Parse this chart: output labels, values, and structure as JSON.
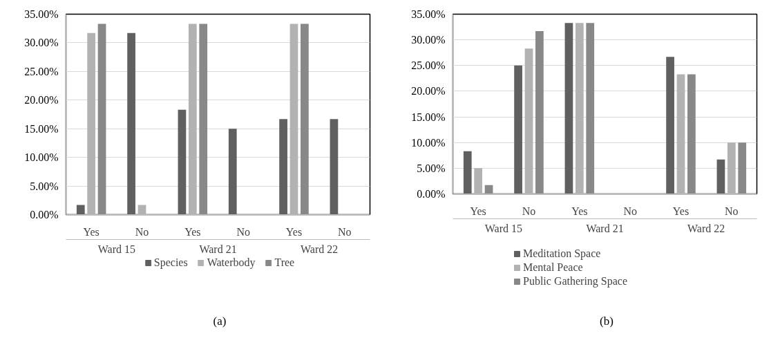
{
  "chart_data": [
    {
      "type": "bar",
      "categories": [
        "Yes",
        "No",
        "Yes",
        "No",
        "Yes",
        "No"
      ],
      "series": [
        {
          "name": "Species",
          "color": "#606060",
          "values": [
            1.7,
            31.7,
            18.3,
            15.0,
            16.7,
            16.7
          ]
        },
        {
          "name": "Waterbody",
          "color": "#b2b2b2",
          "values": [
            31.7,
            1.7,
            33.3,
            0,
            33.3,
            0
          ]
        },
        {
          "name": "Tree",
          "color": "#888888",
          "values": [
            33.3,
            0,
            33.3,
            0,
            33.3,
            0
          ]
        }
      ],
      "ylim": [
        0,
        35
      ],
      "yticks": [
        {
          "value": 0,
          "label": "0.00%"
        },
        {
          "value": 5,
          "label": "5.00%"
        },
        {
          "value": 10,
          "label": "10.00%"
        },
        {
          "value": 15,
          "label": "15.00%"
        },
        {
          "value": 20,
          "label": "20.00%"
        },
        {
          "value": 25,
          "label": "25.00%"
        },
        {
          "value": 30,
          "label": "30.00%"
        },
        {
          "value": 35,
          "label": "35.00%"
        }
      ],
      "grid": "y",
      "legend": "bottom",
      "annotations": [
        "Ward 15",
        "Ward 21",
        "Ward 22",
        "(a)"
      ]
    },
    {
      "type": "bar",
      "categories": [
        "Yes",
        "No",
        "Yes",
        "No",
        "Yes",
        "No"
      ],
      "series": [
        {
          "name": "Meditation Space",
          "color": "#606060",
          "values": [
            8.3,
            25.0,
            33.3,
            0,
            26.7,
            6.7
          ]
        },
        {
          "name": "Mental Peace",
          "color": "#b2b2b2",
          "values": [
            5.0,
            28.3,
            33.3,
            0,
            23.3,
            10.0
          ]
        },
        {
          "name": "Public Gathering Space",
          "color": "#888888",
          "values": [
            1.7,
            31.7,
            33.3,
            0,
            23.3,
            10.0
          ]
        }
      ],
      "ylim": [
        0,
        35
      ],
      "yticks": [
        {
          "value": 0,
          "label": "0.00%"
        },
        {
          "value": 5,
          "label": "5.00%"
        },
        {
          "value": 10,
          "label": "10.00%"
        },
        {
          "value": 15,
          "label": "15.00%"
        },
        {
          "value": 20,
          "label": "20.00%"
        },
        {
          "value": 25,
          "label": "25.00%"
        },
        {
          "value": 30,
          "label": "30.00%"
        },
        {
          "value": 35,
          "label": "35.00%"
        }
      ],
      "grid": "y",
      "legend": "bottom left",
      "annotations": [
        "Ward 15",
        "Ward 21",
        "Ward 22",
        "(b)"
      ]
    }
  ]
}
